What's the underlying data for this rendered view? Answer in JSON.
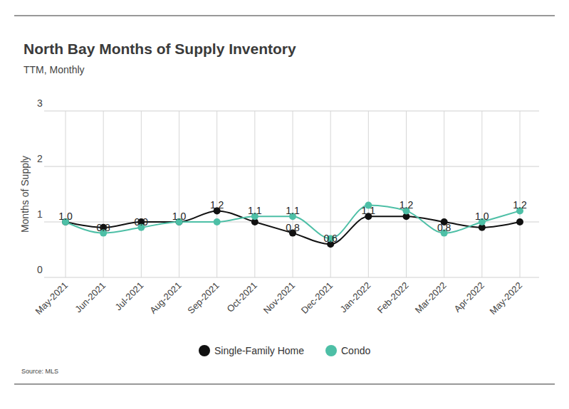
{
  "chart_data": {
    "type": "line",
    "title": "North Bay Months of Supply Inventory",
    "subtitle": "TTM, Monthly",
    "y_label": "Months of Supply",
    "source": "Source: MLS",
    "categories": [
      "May-2021",
      "Jun-2021",
      "Jul-2021",
      "Aug-2021",
      "Sep-2021",
      "Oct-2021",
      "Nov-2021",
      "Dec-2021",
      "Jan-2022",
      "Feb-2022",
      "Mar-2022",
      "Apr-2022",
      "May-2022"
    ],
    "series": [
      {
        "name": "Single-Family Home",
        "color": "#111111",
        "marker": "circle",
        "line_style": "solid",
        "values": [
          1.0,
          0.9,
          1.0,
          1.0,
          1.2,
          1.0,
          0.8,
          0.6,
          1.1,
          1.1,
          1.0,
          0.9,
          1.0
        ],
        "value_labels": [
          "1.0",
          null,
          null,
          "1.0",
          "1.2",
          null,
          "0.8",
          "0.6",
          "1.1",
          null,
          null,
          null,
          null
        ]
      },
      {
        "name": "Condo",
        "color": "#4dbfa6",
        "marker": "circle",
        "line_style": "solid",
        "values": [
          1.0,
          0.8,
          0.9,
          1.0,
          1.0,
          1.1,
          1.1,
          0.7,
          1.3,
          1.2,
          0.8,
          1.0,
          1.2
        ],
        "value_labels": [
          null,
          "0.8",
          "0.9",
          null,
          null,
          "1.1",
          "1.1",
          null,
          null,
          "1.2",
          "0.8",
          "1.0",
          "1.2"
        ]
      }
    ],
    "ylim": [
      0,
      3
    ],
    "yticks": [
      0,
      1,
      2,
      3
    ],
    "grid": true,
    "legend": "bottom",
    "data_labels": true
  }
}
